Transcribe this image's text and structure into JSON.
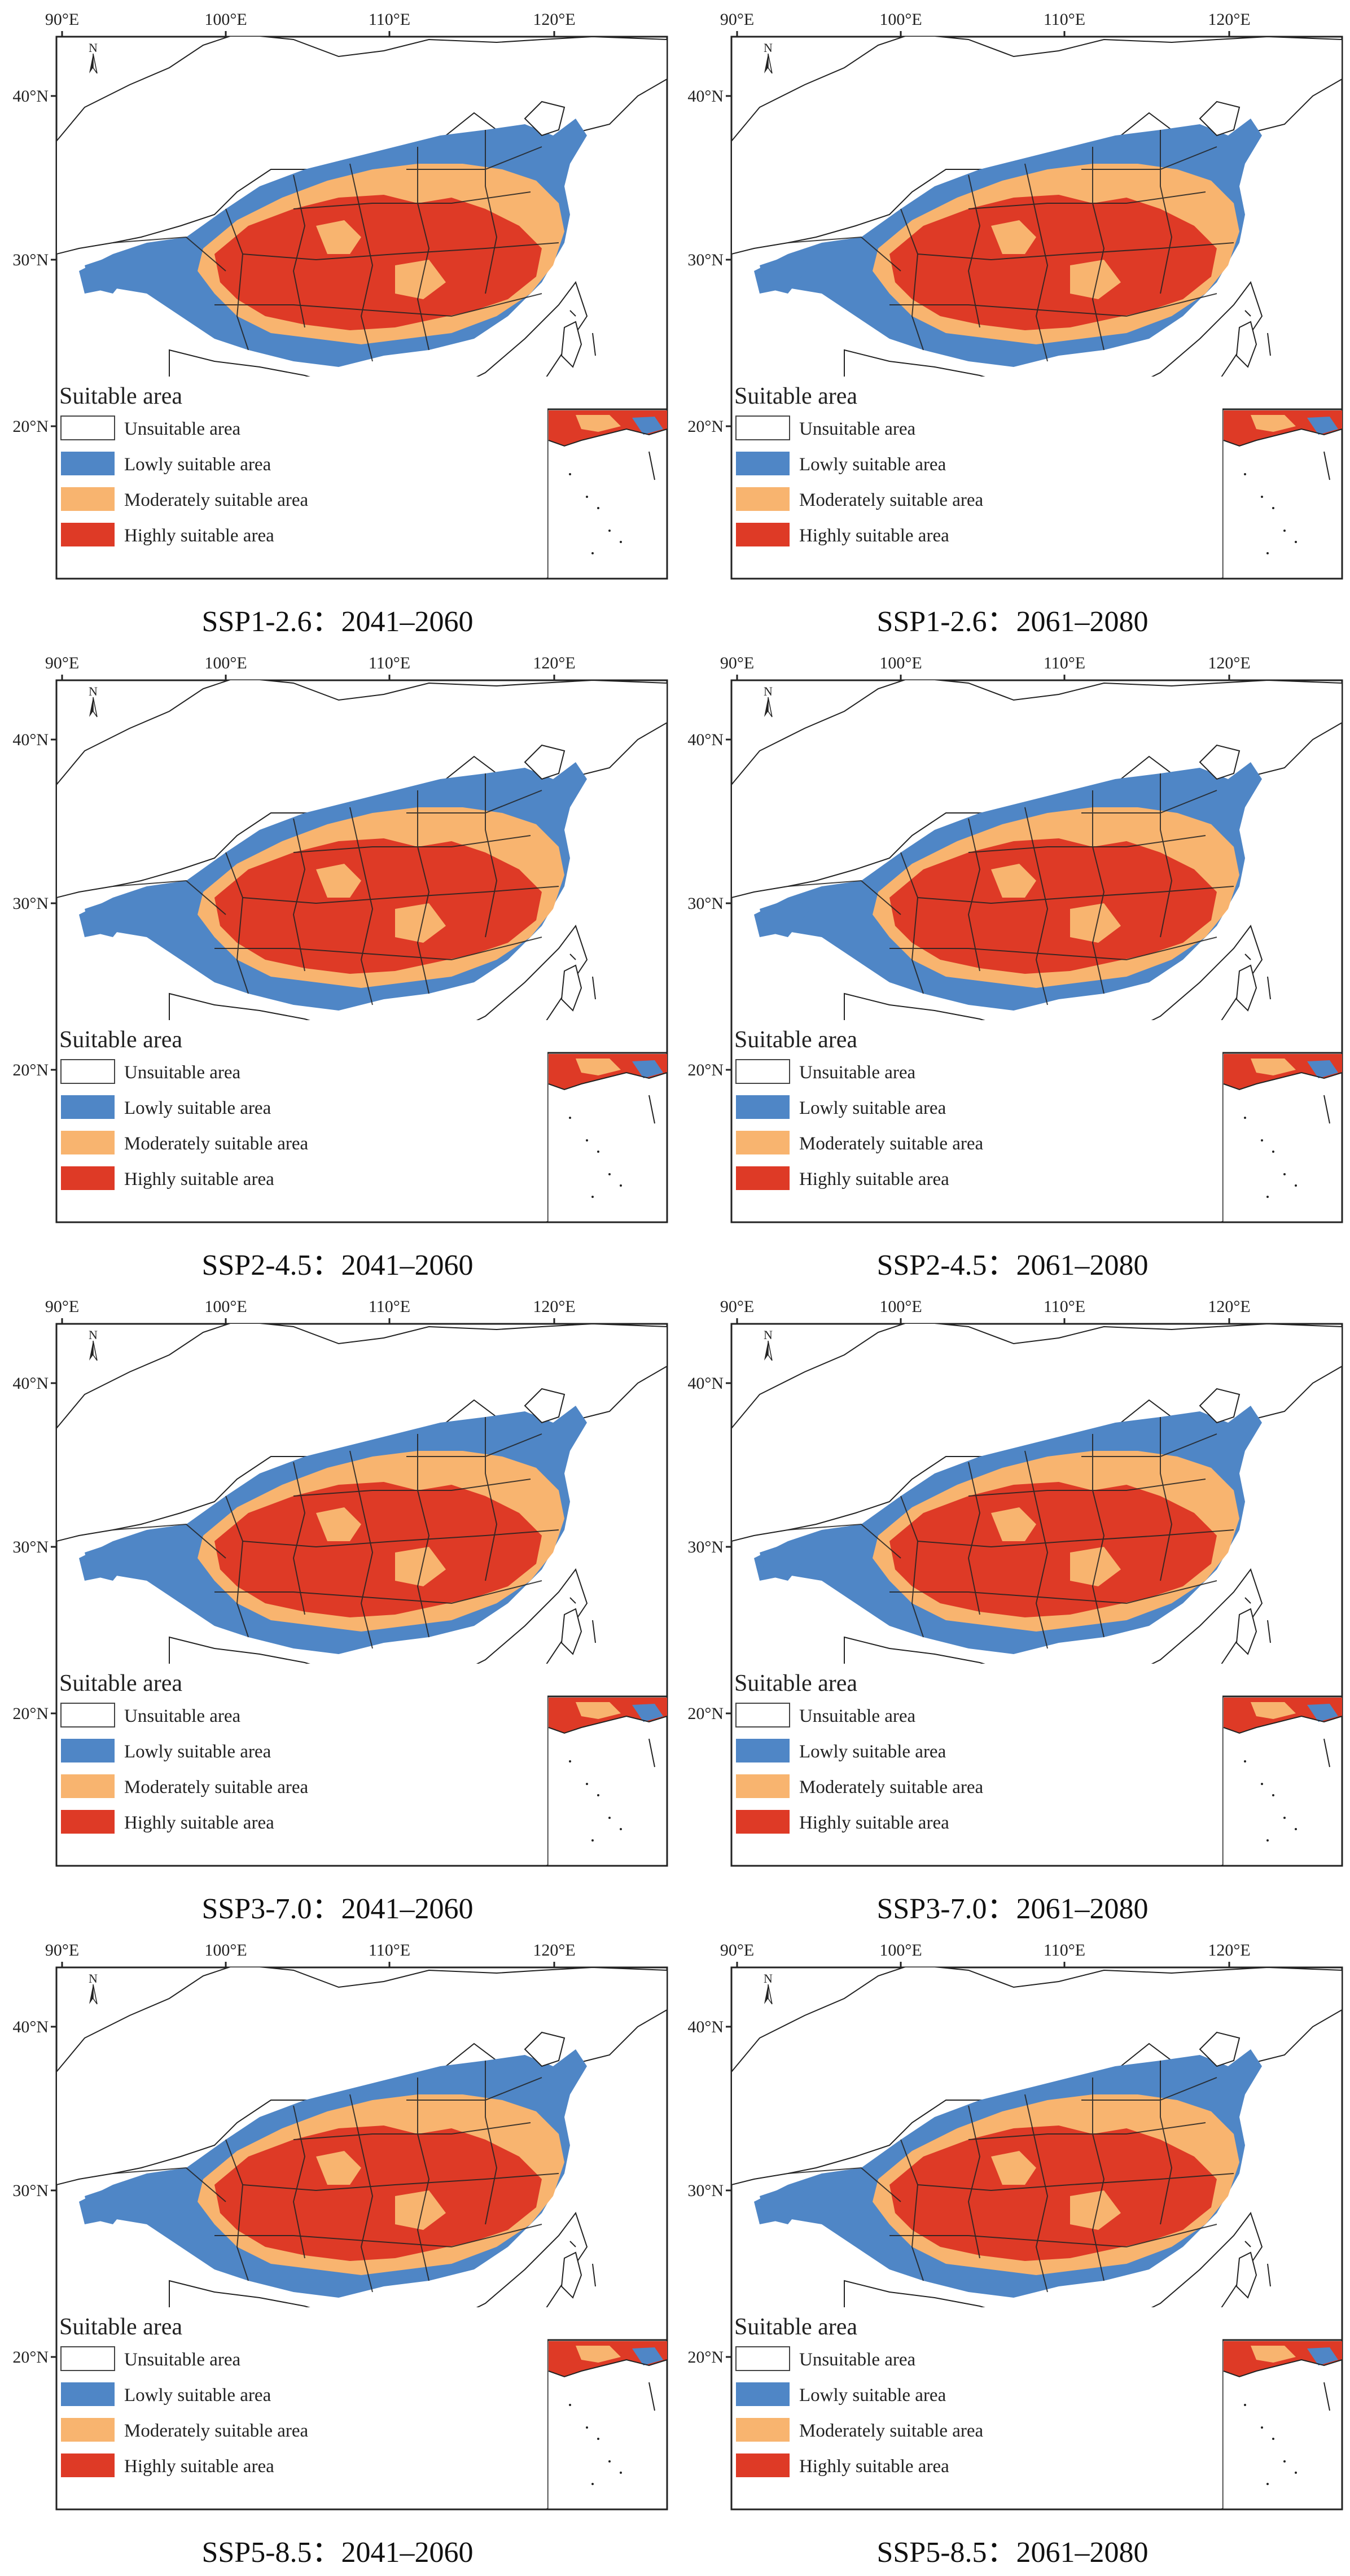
{
  "colors": {
    "unsuitable": "#ffffff",
    "lowly": "#4f86c6",
    "moderately": "#f8b46f",
    "highly": "#de3a26",
    "boundary": "#222222"
  },
  "axes": {
    "lon_ticks": [
      "90°E",
      "100°E",
      "110°E",
      "120°E"
    ],
    "lat_ticks": [
      "40°N",
      "30°N",
      "20°N"
    ],
    "north_arrow": "N"
  },
  "legend": {
    "title": "Suitable area",
    "items": [
      {
        "label": "Unsuitable area",
        "color_key": "unsuitable"
      },
      {
        "label": "Lowly suitable area",
        "color_key": "lowly"
      },
      {
        "label": "Moderately suitable area",
        "color_key": "moderately"
      },
      {
        "label": "Highly suitable area",
        "color_key": "highly"
      }
    ]
  },
  "panels": [
    {
      "caption": "SSP1-2.6：2041–2060"
    },
    {
      "caption": "SSP1-2.6：2061–2080"
    },
    {
      "caption": "SSP2-4.5：2041–2060"
    },
    {
      "caption": "SSP2-4.5：2061–2080"
    },
    {
      "caption": "SSP3-7.0：2041–2060"
    },
    {
      "caption": "SSP3-7.0：2061–2080"
    },
    {
      "caption": "SSP5-8.5：2041–2060"
    },
    {
      "caption": "SSP5-8.5：2061–2080"
    }
  ]
}
